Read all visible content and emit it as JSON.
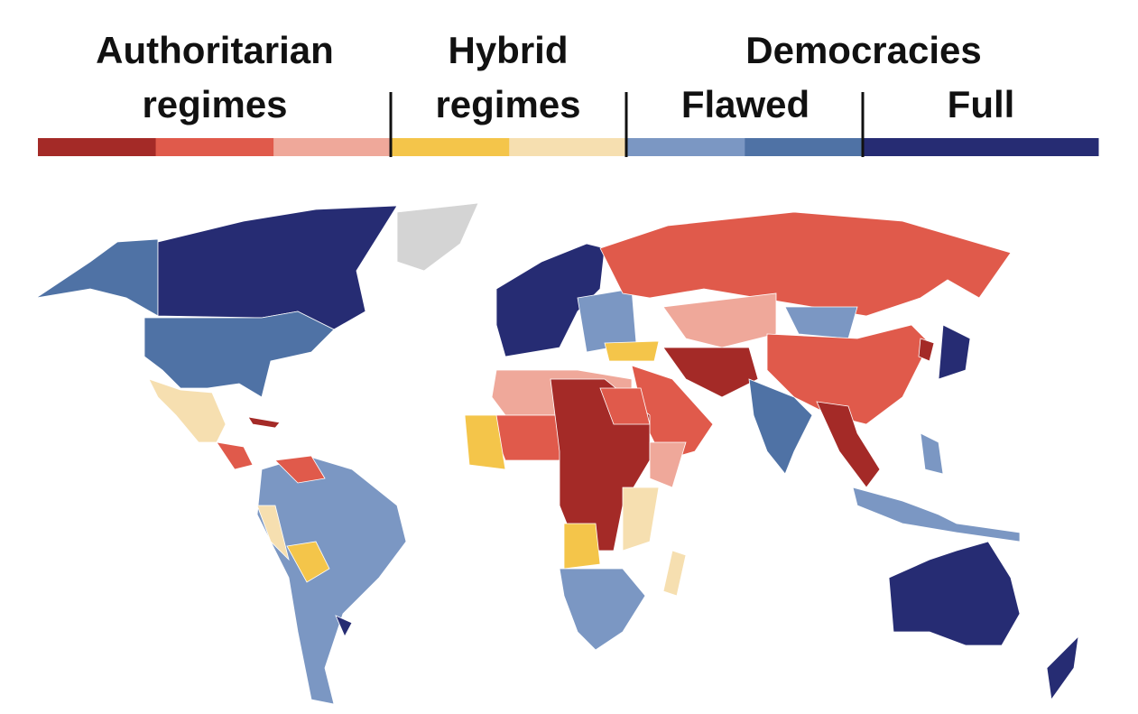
{
  "legend": {
    "authoritarian": {
      "title": "Authoritarian",
      "subtitle": "regimes"
    },
    "hybrid": {
      "title": "Hybrid",
      "subtitle": "regimes"
    },
    "democracies": {
      "title": "Democracies",
      "flawed": "Flawed",
      "full": "Full"
    },
    "colors": [
      "#a42a27",
      "#e05a4b",
      "#efa89a",
      "#f4c54a",
      "#f6dfb0",
      "#7b97c3",
      "#4f72a5",
      "#262c73",
      "#262c73"
    ]
  }
}
